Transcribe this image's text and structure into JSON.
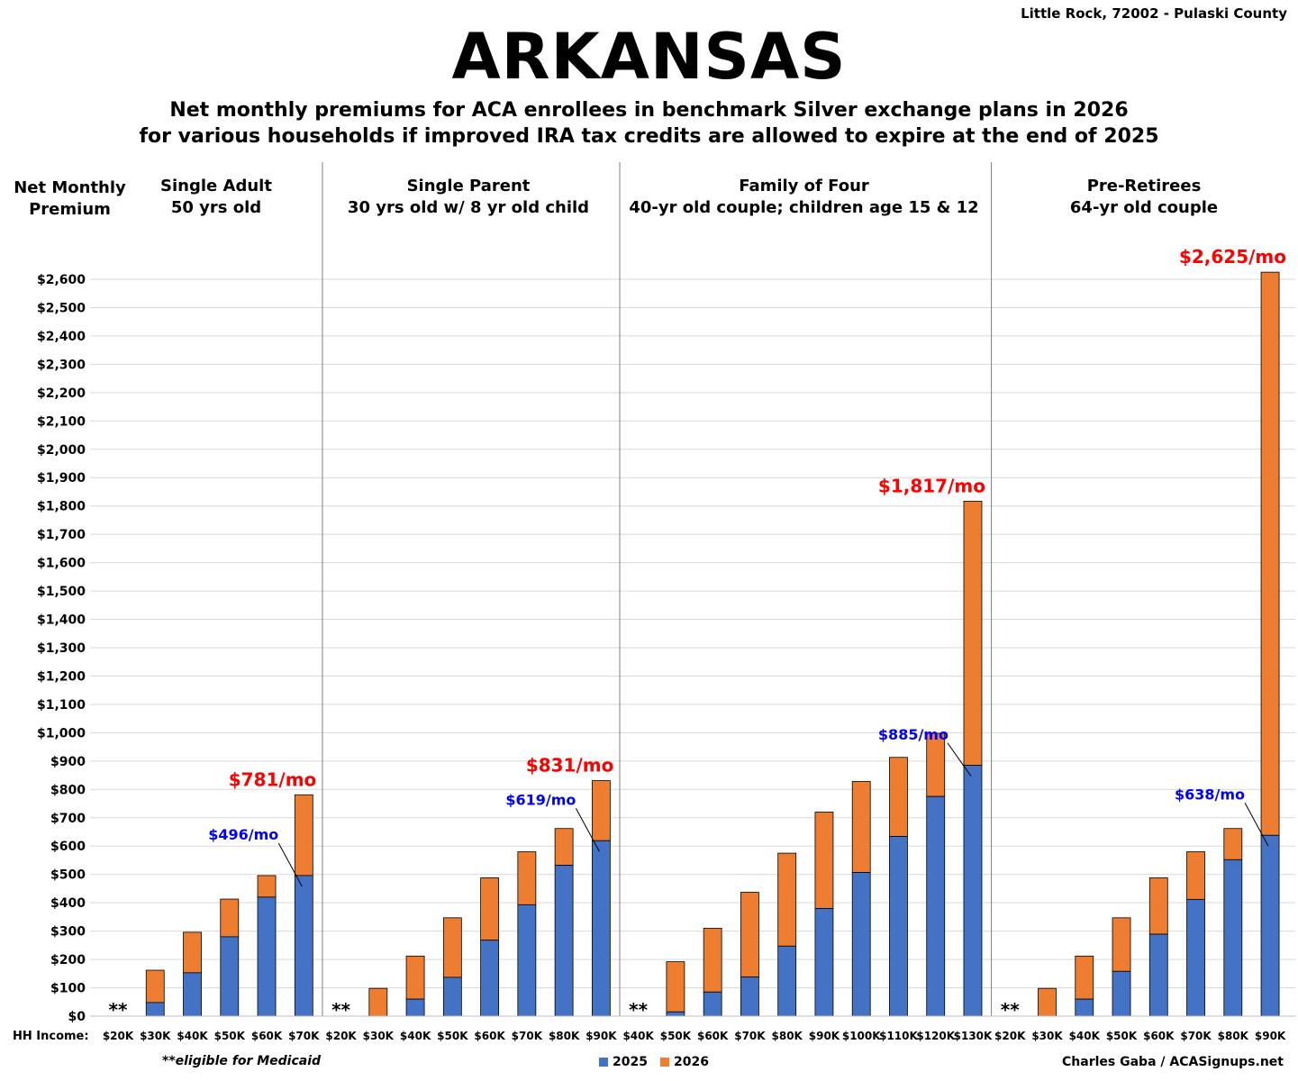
{
  "location": "Little Rock, 72002 - Pulaski County",
  "title": "ARKANSAS",
  "subtitle_lines": [
    "Net monthly premiums for ACA enrollees in benchmark Silver exchange plans in 2026",
    "for various households if improved IRA tax credits are allowed to expire at the end of 2025"
  ],
  "y_axis_title": [
    "Net Monthly",
    "Premium"
  ],
  "x_axis_prefix": "HH Income:",
  "footnote": "**eligible for Medicaid",
  "credit": "Charles Gaba / ACASignups.net",
  "colors": {
    "2025": "#4472C4",
    "2026": "#ED7D31",
    "callout_2026": "#FF0000",
    "callout_2025": "#0000FF"
  },
  "chart_data": {
    "type": "bar",
    "stacked": true,
    "ylim": [
      0,
      2600
    ],
    "ytick_step": 100,
    "grid": true,
    "legend": "bottom",
    "legend_entries": [
      "2025",
      "2026"
    ],
    "medicaid_marker": "**",
    "groups": [
      {
        "title": [
          "Single Adult",
          "50 yrs old"
        ],
        "categories": [
          "$20K",
          "$30K",
          "$40K",
          "$50K",
          "$60K",
          "$70K"
        ],
        "values_2025": [
          null,
          48,
          153,
          280,
          420,
          496
        ],
        "values_2026": [
          null,
          162,
          296,
          413,
          496,
          781
        ],
        "callout_2026": "$781/mo",
        "callout_2025": "$496/mo"
      },
      {
        "title": [
          "Single Parent",
          "30 yrs old w/ 8 yr old child"
        ],
        "categories": [
          "$20K",
          "$30K",
          "$40K",
          "$50K",
          "$60K",
          "$70K",
          "$80K",
          "$90K"
        ],
        "values_2025": [
          null,
          0,
          60,
          137,
          268,
          393,
          532,
          619
        ],
        "values_2026": [
          null,
          98,
          212,
          347,
          488,
          580,
          662,
          831
        ],
        "callout_2026": "$831/mo",
        "callout_2025": "$619/mo"
      },
      {
        "title": [
          "Family of Four",
          "40-yr old couple; children age 15 & 12"
        ],
        "categories": [
          "$40K",
          "$50K",
          "$60K",
          "$70K",
          "$80K",
          "$90K",
          "$100K",
          "$110K",
          "$120K",
          "$130K"
        ],
        "values_2025": [
          null,
          15,
          85,
          138,
          247,
          380,
          507,
          634,
          775,
          885
        ],
        "values_2026": [
          null,
          192,
          310,
          437,
          575,
          720,
          828,
          913,
          998,
          1817
        ],
        "callout_2026": "$1,817/mo",
        "callout_2025": "$885/mo"
      },
      {
        "title": [
          "Pre-Retirees",
          "64-yr old couple"
        ],
        "categories": [
          "$20K",
          "$30K",
          "$40K",
          "$50K",
          "$60K",
          "$70K",
          "$80K",
          "$90K"
        ],
        "values_2025": [
          null,
          0,
          60,
          158,
          289,
          412,
          552,
          638
        ],
        "values_2026": [
          null,
          98,
          212,
          347,
          488,
          580,
          662,
          2625
        ],
        "callout_2026": "$2,625/mo",
        "callout_2025": "$638/mo"
      }
    ]
  }
}
